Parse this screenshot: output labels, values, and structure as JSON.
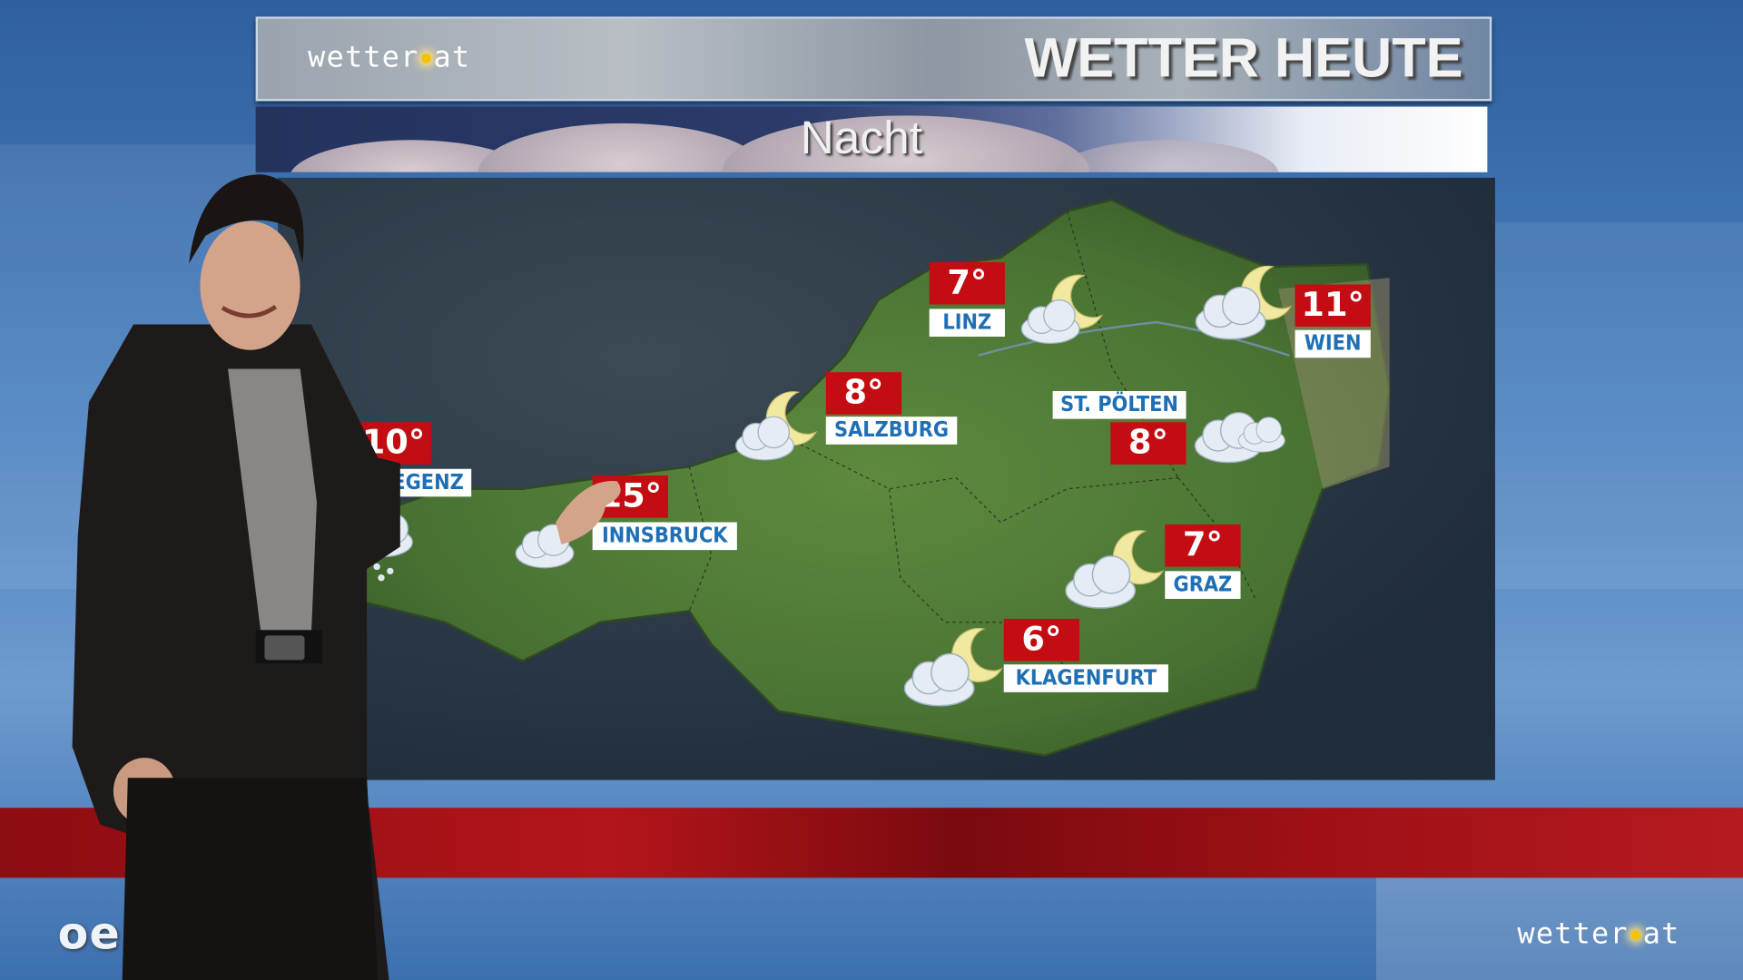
{
  "header": {
    "logo": "wetter.at",
    "title": "WETTER HEUTE"
  },
  "subheader": {
    "period": "Nacht"
  },
  "cities": [
    {
      "name": "LINZ",
      "temp": "7°",
      "icon": "moon-cloud-icon"
    },
    {
      "name": "WIEN",
      "temp": "11°",
      "icon": "moon-cloud-icon"
    },
    {
      "name": "SALZBURG",
      "temp": "8°",
      "icon": "moon-cloud-icon"
    },
    {
      "name": "ST. PÖLTEN",
      "temp": "8°",
      "icon": "cloud-icon"
    },
    {
      "name": "BREGENZ",
      "temp": "10°",
      "icon": "rain-cloud-icon"
    },
    {
      "name": "INNSBRUCK",
      "temp": "15°",
      "icon": "moon-cloud-icon"
    },
    {
      "name": "GRAZ",
      "temp": "7°",
      "icon": "moon-cloud-icon"
    },
    {
      "name": "KLAGENFURT",
      "temp": "6°",
      "icon": "moon-cloud-icon"
    }
  ],
  "footer": {
    "left_logo": "oe24.at",
    "right_logo": "wetter.at"
  },
  "colors": {
    "temp_box": "#c30d12",
    "label_text": "#1f6fb5",
    "land": "#4d7a35",
    "band": "#b3151b"
  }
}
